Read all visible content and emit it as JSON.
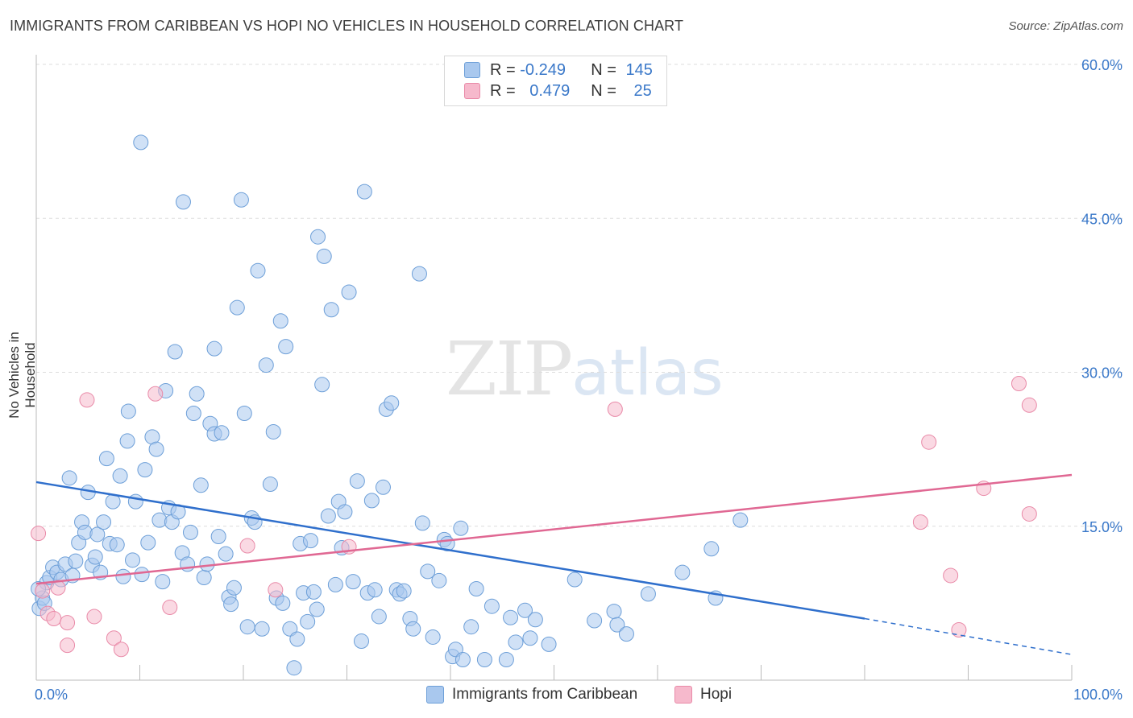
{
  "title": "IMMIGRANTS FROM CARIBBEAN VS HOPI NO VEHICLES IN HOUSEHOLD CORRELATION CHART",
  "source": "Source: ZipAtlas.com",
  "watermark": {
    "zip": "ZIP",
    "atlas": "atlas"
  },
  "legend": {
    "series1": {
      "r_label": "R = ",
      "r_value": "-0.249",
      "n_label": "N = ",
      "n_value": "145"
    },
    "series2": {
      "r_label": "R = ",
      "r_value": "0.479",
      "n_label": "N = ",
      "n_value": "25"
    }
  },
  "colors": {
    "caribbean_fill": "#a9c8ee",
    "caribbean_stroke": "#6d9fd8",
    "caribbean_line": "#2f6fcc",
    "hopi_fill": "#f6b9cc",
    "hopi_stroke": "#e98aa8",
    "hopi_line": "#e06893",
    "tick_label": "#3a78c9",
    "grid": "#dddddd"
  },
  "chart_data": {
    "type": "scatter",
    "title": "IMMIGRANTS FROM CARIBBEAN VS HOPI NO VEHICLES IN HOUSEHOLD CORRELATION CHART",
    "xlabel": "",
    "ylabel": "No Vehicles in Household",
    "xlim": [
      0,
      100
    ],
    "ylim": [
      0,
      60
    ],
    "x_tick_labels": [
      "0.0%",
      "100.0%"
    ],
    "y_ticks": [
      15,
      30,
      45,
      60
    ],
    "y_tick_labels": [
      "15.0%",
      "30.0%",
      "45.0%",
      "60.0%"
    ],
    "grid": true,
    "legend_position": "top-center",
    "series": [
      {
        "name": "Immigrants from Caribbean",
        "r": -0.249,
        "n": 145,
        "trend": {
          "x_start": 0,
          "y_start": 19.3,
          "x_solid_end": 80,
          "y_solid_end": 6.0,
          "x_end": 100,
          "y_end": 2.5
        },
        "points": [
          [
            0.3,
            7.0
          ],
          [
            0.6,
            8.0
          ],
          [
            0.8,
            7.5
          ],
          [
            1.0,
            9.5
          ],
          [
            1.3,
            10.0
          ],
          [
            1.6,
            11.0
          ],
          [
            2.0,
            10.5
          ],
          [
            2.4,
            9.8
          ],
          [
            2.8,
            11.3
          ],
          [
            3.2,
            19.7
          ],
          [
            3.5,
            10.2
          ],
          [
            3.8,
            11.6
          ],
          [
            4.1,
            13.4
          ],
          [
            4.4,
            15.4
          ],
          [
            4.7,
            14.4
          ],
          [
            5.0,
            18.3
          ],
          [
            5.4,
            11.2
          ],
          [
            5.7,
            12.0
          ],
          [
            5.9,
            14.2
          ],
          [
            6.2,
            10.5
          ],
          [
            6.5,
            15.4
          ],
          [
            6.8,
            21.6
          ],
          [
            7.1,
            13.3
          ],
          [
            7.4,
            17.4
          ],
          [
            7.8,
            13.2
          ],
          [
            8.1,
            19.9
          ],
          [
            8.4,
            10.1
          ],
          [
            8.8,
            23.3
          ],
          [
            8.9,
            26.2
          ],
          [
            9.3,
            11.7
          ],
          [
            9.6,
            17.4
          ],
          [
            10.1,
            52.4
          ],
          [
            10.2,
            10.3
          ],
          [
            10.5,
            20.5
          ],
          [
            10.8,
            13.4
          ],
          [
            11.2,
            23.7
          ],
          [
            11.6,
            22.5
          ],
          [
            11.9,
            15.6
          ],
          [
            12.2,
            9.6
          ],
          [
            12.5,
            28.2
          ],
          [
            12.8,
            16.8
          ],
          [
            13.1,
            15.4
          ],
          [
            13.4,
            32.0
          ],
          [
            13.7,
            16.4
          ],
          [
            14.1,
            12.4
          ],
          [
            14.2,
            46.6
          ],
          [
            14.6,
            11.3
          ],
          [
            14.9,
            14.4
          ],
          [
            15.2,
            26.0
          ],
          [
            15.5,
            27.9
          ],
          [
            15.9,
            19.0
          ],
          [
            16.2,
            10.0
          ],
          [
            16.5,
            11.3
          ],
          [
            16.8,
            25.0
          ],
          [
            17.2,
            32.3
          ],
          [
            17.2,
            24.0
          ],
          [
            17.6,
            14.0
          ],
          [
            17.9,
            24.1
          ],
          [
            18.3,
            12.3
          ],
          [
            18.6,
            8.1
          ],
          [
            18.8,
            7.4
          ],
          [
            19.1,
            9.0
          ],
          [
            19.4,
            36.3
          ],
          [
            19.8,
            46.8
          ],
          [
            20.1,
            26.0
          ],
          [
            20.4,
            5.2
          ],
          [
            20.8,
            15.8
          ],
          [
            21.1,
            15.4
          ],
          [
            21.4,
            39.9
          ],
          [
            21.8,
            5.0
          ],
          [
            22.2,
            30.7
          ],
          [
            22.6,
            19.1
          ],
          [
            22.9,
            24.2
          ],
          [
            23.2,
            8.0
          ],
          [
            23.6,
            35.0
          ],
          [
            23.8,
            7.5
          ],
          [
            24.1,
            32.5
          ],
          [
            24.5,
            5.0
          ],
          [
            24.9,
            1.2
          ],
          [
            25.2,
            4.0
          ],
          [
            25.5,
            13.3
          ],
          [
            25.8,
            8.5
          ],
          [
            26.2,
            5.7
          ],
          [
            26.5,
            13.6
          ],
          [
            26.8,
            8.6
          ],
          [
            27.1,
            6.9
          ],
          [
            27.2,
            43.2
          ],
          [
            27.6,
            28.8
          ],
          [
            27.8,
            41.3
          ],
          [
            28.2,
            16.0
          ],
          [
            28.5,
            36.1
          ],
          [
            28.9,
            9.3
          ],
          [
            29.2,
            17.4
          ],
          [
            29.5,
            12.9
          ],
          [
            29.8,
            16.4
          ],
          [
            30.2,
            37.8
          ],
          [
            30.6,
            9.6
          ],
          [
            31.0,
            19.4
          ],
          [
            31.4,
            3.8
          ],
          [
            31.7,
            47.6
          ],
          [
            32.0,
            8.5
          ],
          [
            32.4,
            17.5
          ],
          [
            32.7,
            8.8
          ],
          [
            33.1,
            6.2
          ],
          [
            33.5,
            18.8
          ],
          [
            33.8,
            26.4
          ],
          [
            34.3,
            27.0
          ],
          [
            34.8,
            8.8
          ],
          [
            35.1,
            8.4
          ],
          [
            35.5,
            8.7
          ],
          [
            36.1,
            6.0
          ],
          [
            36.4,
            5.0
          ],
          [
            37.0,
            39.6
          ],
          [
            37.3,
            15.3
          ],
          [
            37.8,
            10.6
          ],
          [
            38.3,
            4.2
          ],
          [
            38.9,
            9.7
          ],
          [
            39.4,
            13.7
          ],
          [
            39.7,
            13.3
          ],
          [
            40.2,
            2.3
          ],
          [
            40.5,
            3.0
          ],
          [
            41.0,
            14.8
          ],
          [
            41.2,
            2.0
          ],
          [
            42.0,
            5.2
          ],
          [
            42.5,
            8.9
          ],
          [
            43.3,
            2.0
          ],
          [
            44.0,
            7.2
          ],
          [
            45.4,
            2.0
          ],
          [
            45.8,
            6.1
          ],
          [
            46.3,
            3.7
          ],
          [
            47.2,
            6.8
          ],
          [
            47.7,
            4.1
          ],
          [
            48.2,
            5.9
          ],
          [
            49.5,
            3.5
          ],
          [
            52.0,
            9.8
          ],
          [
            53.9,
            5.8
          ],
          [
            55.8,
            6.7
          ],
          [
            56.1,
            5.4
          ],
          [
            57.0,
            4.5
          ],
          [
            59.1,
            8.4
          ],
          [
            62.4,
            10.5
          ],
          [
            65.2,
            12.8
          ],
          [
            65.6,
            8.0
          ],
          [
            68.0,
            15.6
          ],
          [
            0.2,
            8.9
          ]
        ]
      },
      {
        "name": "Hopi",
        "r": 0.479,
        "n": 25,
        "trend": {
          "x_start": 0,
          "y_start": 9.4,
          "x_end": 100,
          "y_end": 20.0
        },
        "points": [
          [
            0.2,
            14.3
          ],
          [
            0.6,
            8.7
          ],
          [
            1.1,
            6.5
          ],
          [
            1.7,
            6.0
          ],
          [
            2.1,
            9.0
          ],
          [
            3.0,
            5.6
          ],
          [
            3.0,
            3.4
          ],
          [
            4.9,
            27.3
          ],
          [
            5.6,
            6.2
          ],
          [
            7.5,
            4.1
          ],
          [
            8.2,
            3.0
          ],
          [
            11.5,
            27.9
          ],
          [
            12.9,
            7.1
          ],
          [
            20.4,
            13.1
          ],
          [
            23.1,
            8.8
          ],
          [
            30.2,
            13.0
          ],
          [
            55.9,
            26.4
          ],
          [
            85.4,
            15.4
          ],
          [
            86.2,
            23.2
          ],
          [
            88.3,
            10.2
          ],
          [
            89.1,
            4.9
          ],
          [
            91.5,
            18.7
          ],
          [
            94.9,
            28.9
          ],
          [
            95.9,
            26.8
          ],
          [
            95.9,
            16.2
          ]
        ]
      }
    ]
  }
}
